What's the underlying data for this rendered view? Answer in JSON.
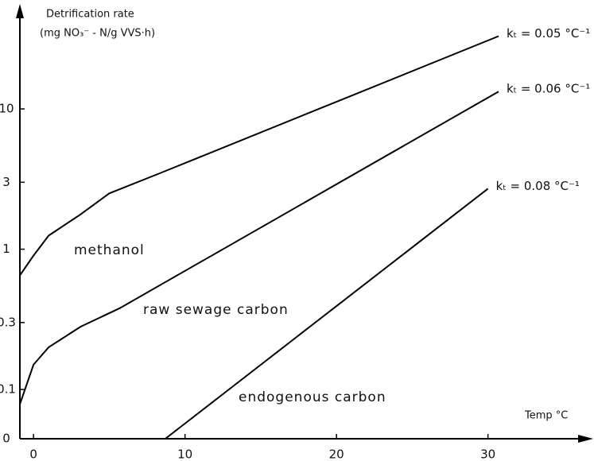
{
  "chart_data": {
    "type": "line",
    "ylabel_lines": [
      "Detrification rate",
      "(mg NO₃⁻ - N/g VVS·h)"
    ],
    "xlabel": "Temp °C",
    "log_y": true,
    "xlim": [
      -0.9,
      37
    ],
    "xticks": [
      0,
      10,
      20,
      30
    ],
    "ylim": [
      0,
      56
    ],
    "yticks": [
      0,
      0.1,
      0.3,
      1,
      3,
      10
    ],
    "grid": false,
    "series": [
      {
        "name": "methanol",
        "color": "#000000",
        "rate_label": "kₜ = 0.05 °C⁻¹",
        "x": [
          -0.9,
          0,
          1,
          3.1,
          5,
          8.4,
          30.7
        ],
        "values": [
          0.65,
          0.9,
          1.25,
          1.77,
          2.5,
          3.5,
          33
        ]
      },
      {
        "name": "raw sewage carbon",
        "color": "#000000",
        "rate_label": "kₜ = 0.06 °C⁻¹",
        "x": [
          -0.9,
          0,
          1,
          3.1,
          5.7,
          30.7
        ],
        "values": [
          0.07,
          0.15,
          0.2,
          0.28,
          0.38,
          13.3
        ]
      },
      {
        "name": "endogenous carbon",
        "color": "#000000",
        "rate_label": "kₜ = 0.08 °C⁻¹",
        "x": [
          8.7,
          12.9,
          30
        ],
        "values": [
          0,
          0.1,
          2.7
        ]
      }
    ]
  }
}
